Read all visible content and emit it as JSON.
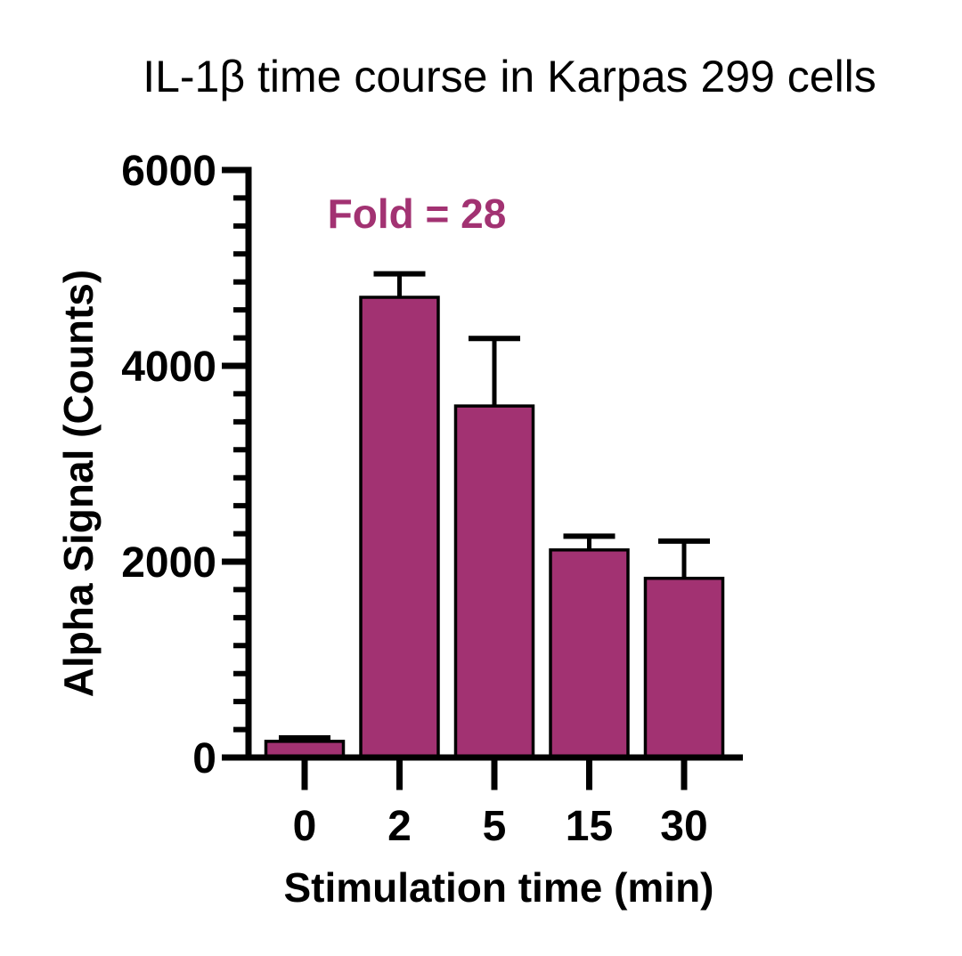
{
  "chart_data": {
    "type": "bar",
    "title": "IL-1β time course in Karpas 299 cells",
    "xlabel": "Stimulation time (min)",
    "ylabel": "Alpha Signal (Counts)",
    "annotation": "Fold = 28",
    "categories": [
      "0",
      "2",
      "5",
      "15",
      "30"
    ],
    "values": [
      165,
      4700,
      3590,
      2120,
      1830
    ],
    "errors": [
      35,
      240,
      690,
      140,
      380
    ],
    "error_bar_style": "upper-only-with-caps",
    "ylim": [
      0,
      6000
    ],
    "yticks": [
      "0",
      "2000",
      "4000",
      "6000"
    ],
    "minor_ticks_between_majors": 6,
    "grid": false,
    "legend": false,
    "colors": {
      "bar_fill": "#A23272",
      "bar_edge": "#000000",
      "axis": "#000000",
      "error_bar": "#000000",
      "annotation_text": "#A23272",
      "title_text": "#000000"
    }
  }
}
